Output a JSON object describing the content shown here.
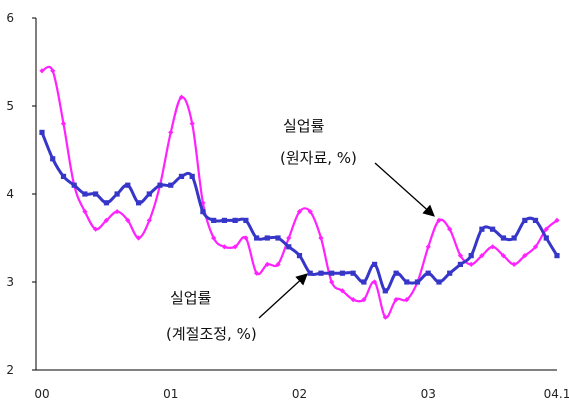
{
  "chart_data": {
    "type": "line",
    "ylim": [
      2,
      6
    ],
    "yticks": [
      "2",
      "3",
      "4",
      "5",
      "6"
    ],
    "xticks": [
      "00",
      "01",
      "02",
      "03",
      "04.1"
    ],
    "grid": false,
    "colors": {
      "raw": "#ff22ff",
      "sa": "#3636c8",
      "axis": "#000000",
      "arrow": "#000000"
    },
    "annotations": [
      {
        "id": "raw",
        "line1": "실업률",
        "line2": "(원자료, %)"
      },
      {
        "id": "sa",
        "line1": "실업률",
        "line2": "(계절조정, %)"
      }
    ],
    "series": [
      {
        "id": "raw",
        "marker": "diamond",
        "values": [
          5.4,
          5.4,
          4.8,
          4.1,
          3.8,
          3.6,
          3.7,
          3.8,
          3.7,
          3.5,
          3.7,
          4.1,
          4.7,
          5.1,
          4.8,
          3.9,
          3.5,
          3.4,
          3.4,
          3.5,
          3.1,
          3.2,
          3.2,
          3.5,
          3.8,
          3.8,
          3.5,
          3.0,
          2.9,
          2.8,
          2.8,
          3.0,
          2.6,
          2.8,
          2.8,
          3.0,
          3.4,
          3.7,
          3.6,
          3.3,
          3.2,
          3.3,
          3.4,
          3.3,
          3.2,
          3.3,
          3.4,
          3.6,
          3.7
        ]
      },
      {
        "id": "sa",
        "marker": "square",
        "values": [
          4.7,
          4.4,
          4.2,
          4.1,
          4.0,
          4.0,
          3.9,
          4.0,
          4.1,
          3.9,
          4.0,
          4.1,
          4.1,
          4.2,
          4.2,
          3.8,
          3.7,
          3.7,
          3.7,
          3.7,
          3.5,
          3.5,
          3.5,
          3.4,
          3.3,
          3.1,
          3.1,
          3.1,
          3.1,
          3.1,
          3.0,
          3.2,
          2.9,
          3.1,
          3.0,
          3.0,
          3.1,
          3.0,
          3.1,
          3.2,
          3.3,
          3.6,
          3.6,
          3.5,
          3.5,
          3.7,
          3.7,
          3.5,
          3.3
        ]
      }
    ]
  }
}
